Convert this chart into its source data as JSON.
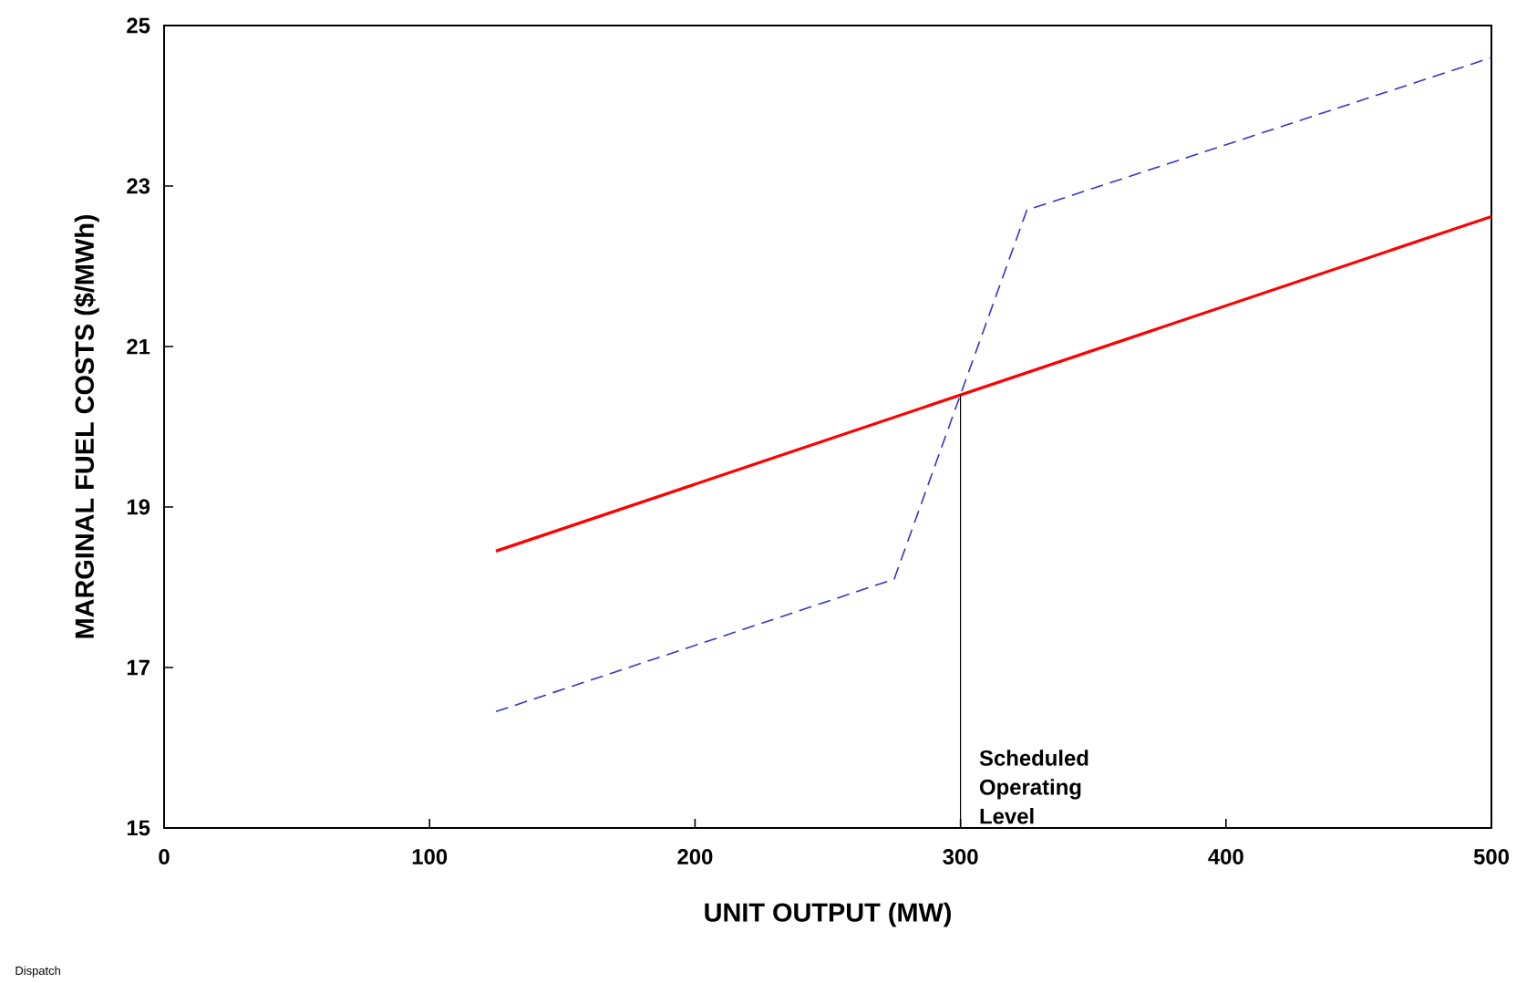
{
  "chart_data": {
    "type": "line",
    "xlabel": "UNIT OUTPUT (MW)",
    "ylabel": "MARGINAL FUEL COSTS ($/MWh)",
    "xlim": [
      0,
      500
    ],
    "xticks": [
      0,
      100,
      200,
      300,
      400,
      500
    ],
    "ylim": [
      15,
      25
    ],
    "yticks": [
      15,
      17,
      19,
      21,
      23,
      25
    ],
    "marker": "none",
    "series": [
      {
        "color": "#ff0000",
        "line_style": "solid",
        "x": [
          125,
          500
        ],
        "values": [
          18.45,
          22.62
        ]
      },
      {
        "color": "#3333cc",
        "line_style": "dashed",
        "x": [
          125,
          275,
          325,
          500
        ],
        "values": [
          16.45,
          18.1,
          22.7,
          24.6
        ]
      }
    ],
    "ref_lines": [
      {
        "axis": "x",
        "value": 300,
        "label": "Scheduled Operating Level",
        "color": "#000000"
      }
    ],
    "annotations": [
      "Dispatch"
    ]
  }
}
